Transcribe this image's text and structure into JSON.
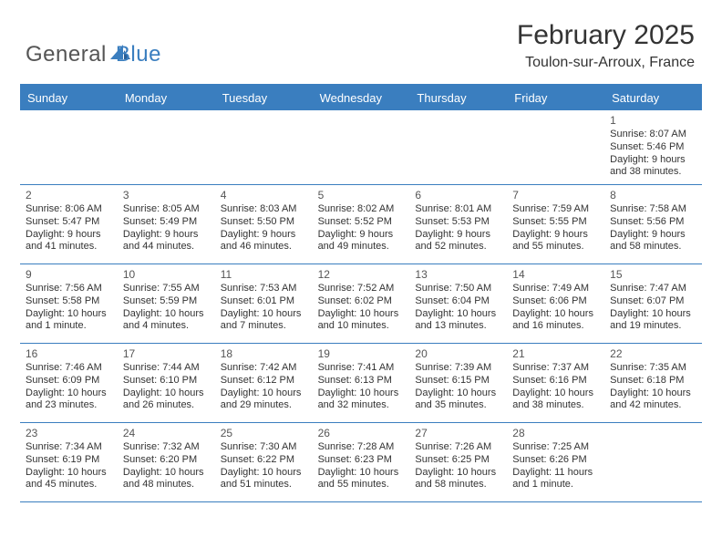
{
  "logo": {
    "left": "General",
    "right": "Blue"
  },
  "title": "February 2025",
  "location": "Toulon-sur-Arroux, France",
  "colors": {
    "accent": "#3a7ebf",
    "text": "#333333",
    "muted": "#555555",
    "background": "#ffffff"
  },
  "day_names": [
    "Sunday",
    "Monday",
    "Tuesday",
    "Wednesday",
    "Thursday",
    "Friday",
    "Saturday"
  ],
  "weeks": [
    [
      null,
      null,
      null,
      null,
      null,
      null,
      {
        "day": "1",
        "sunrise": "Sunrise: 8:07 AM",
        "sunset": "Sunset: 5:46 PM",
        "daylight": "Daylight: 9 hours and 38 minutes."
      }
    ],
    [
      {
        "day": "2",
        "sunrise": "Sunrise: 8:06 AM",
        "sunset": "Sunset: 5:47 PM",
        "daylight": "Daylight: 9 hours and 41 minutes."
      },
      {
        "day": "3",
        "sunrise": "Sunrise: 8:05 AM",
        "sunset": "Sunset: 5:49 PM",
        "daylight": "Daylight: 9 hours and 44 minutes."
      },
      {
        "day": "4",
        "sunrise": "Sunrise: 8:03 AM",
        "sunset": "Sunset: 5:50 PM",
        "daylight": "Daylight: 9 hours and 46 minutes."
      },
      {
        "day": "5",
        "sunrise": "Sunrise: 8:02 AM",
        "sunset": "Sunset: 5:52 PM",
        "daylight": "Daylight: 9 hours and 49 minutes."
      },
      {
        "day": "6",
        "sunrise": "Sunrise: 8:01 AM",
        "sunset": "Sunset: 5:53 PM",
        "daylight": "Daylight: 9 hours and 52 minutes."
      },
      {
        "day": "7",
        "sunrise": "Sunrise: 7:59 AM",
        "sunset": "Sunset: 5:55 PM",
        "daylight": "Daylight: 9 hours and 55 minutes."
      },
      {
        "day": "8",
        "sunrise": "Sunrise: 7:58 AM",
        "sunset": "Sunset: 5:56 PM",
        "daylight": "Daylight: 9 hours and 58 minutes."
      }
    ],
    [
      {
        "day": "9",
        "sunrise": "Sunrise: 7:56 AM",
        "sunset": "Sunset: 5:58 PM",
        "daylight": "Daylight: 10 hours and 1 minute."
      },
      {
        "day": "10",
        "sunrise": "Sunrise: 7:55 AM",
        "sunset": "Sunset: 5:59 PM",
        "daylight": "Daylight: 10 hours and 4 minutes."
      },
      {
        "day": "11",
        "sunrise": "Sunrise: 7:53 AM",
        "sunset": "Sunset: 6:01 PM",
        "daylight": "Daylight: 10 hours and 7 minutes."
      },
      {
        "day": "12",
        "sunrise": "Sunrise: 7:52 AM",
        "sunset": "Sunset: 6:02 PM",
        "daylight": "Daylight: 10 hours and 10 minutes."
      },
      {
        "day": "13",
        "sunrise": "Sunrise: 7:50 AM",
        "sunset": "Sunset: 6:04 PM",
        "daylight": "Daylight: 10 hours and 13 minutes."
      },
      {
        "day": "14",
        "sunrise": "Sunrise: 7:49 AM",
        "sunset": "Sunset: 6:06 PM",
        "daylight": "Daylight: 10 hours and 16 minutes."
      },
      {
        "day": "15",
        "sunrise": "Sunrise: 7:47 AM",
        "sunset": "Sunset: 6:07 PM",
        "daylight": "Daylight: 10 hours and 19 minutes."
      }
    ],
    [
      {
        "day": "16",
        "sunrise": "Sunrise: 7:46 AM",
        "sunset": "Sunset: 6:09 PM",
        "daylight": "Daylight: 10 hours and 23 minutes."
      },
      {
        "day": "17",
        "sunrise": "Sunrise: 7:44 AM",
        "sunset": "Sunset: 6:10 PM",
        "daylight": "Daylight: 10 hours and 26 minutes."
      },
      {
        "day": "18",
        "sunrise": "Sunrise: 7:42 AM",
        "sunset": "Sunset: 6:12 PM",
        "daylight": "Daylight: 10 hours and 29 minutes."
      },
      {
        "day": "19",
        "sunrise": "Sunrise: 7:41 AM",
        "sunset": "Sunset: 6:13 PM",
        "daylight": "Daylight: 10 hours and 32 minutes."
      },
      {
        "day": "20",
        "sunrise": "Sunrise: 7:39 AM",
        "sunset": "Sunset: 6:15 PM",
        "daylight": "Daylight: 10 hours and 35 minutes."
      },
      {
        "day": "21",
        "sunrise": "Sunrise: 7:37 AM",
        "sunset": "Sunset: 6:16 PM",
        "daylight": "Daylight: 10 hours and 38 minutes."
      },
      {
        "day": "22",
        "sunrise": "Sunrise: 7:35 AM",
        "sunset": "Sunset: 6:18 PM",
        "daylight": "Daylight: 10 hours and 42 minutes."
      }
    ],
    [
      {
        "day": "23",
        "sunrise": "Sunrise: 7:34 AM",
        "sunset": "Sunset: 6:19 PM",
        "daylight": "Daylight: 10 hours and 45 minutes."
      },
      {
        "day": "24",
        "sunrise": "Sunrise: 7:32 AM",
        "sunset": "Sunset: 6:20 PM",
        "daylight": "Daylight: 10 hours and 48 minutes."
      },
      {
        "day": "25",
        "sunrise": "Sunrise: 7:30 AM",
        "sunset": "Sunset: 6:22 PM",
        "daylight": "Daylight: 10 hours and 51 minutes."
      },
      {
        "day": "26",
        "sunrise": "Sunrise: 7:28 AM",
        "sunset": "Sunset: 6:23 PM",
        "daylight": "Daylight: 10 hours and 55 minutes."
      },
      {
        "day": "27",
        "sunrise": "Sunrise: 7:26 AM",
        "sunset": "Sunset: 6:25 PM",
        "daylight": "Daylight: 10 hours and 58 minutes."
      },
      {
        "day": "28",
        "sunrise": "Sunrise: 7:25 AM",
        "sunset": "Sunset: 6:26 PM",
        "daylight": "Daylight: 11 hours and 1 minute."
      },
      null
    ]
  ]
}
